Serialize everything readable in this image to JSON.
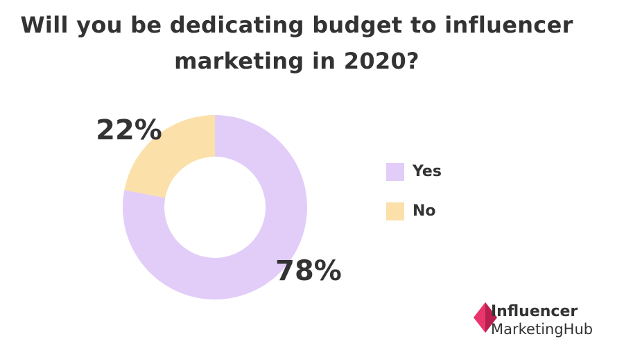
{
  "chart_data": {
    "type": "donut",
    "title": "Will you be dedicating budget to influencer marketing in 2020?",
    "categories": [
      "Yes",
      "No"
    ],
    "values": [
      78,
      22
    ],
    "value_labels": [
      "78%",
      "22%"
    ],
    "colors": [
      "#e2cdf9",
      "#fbe0a9"
    ],
    "legend": "right"
  },
  "logo": [
    "Influencer",
    "MarketingHub"
  ]
}
